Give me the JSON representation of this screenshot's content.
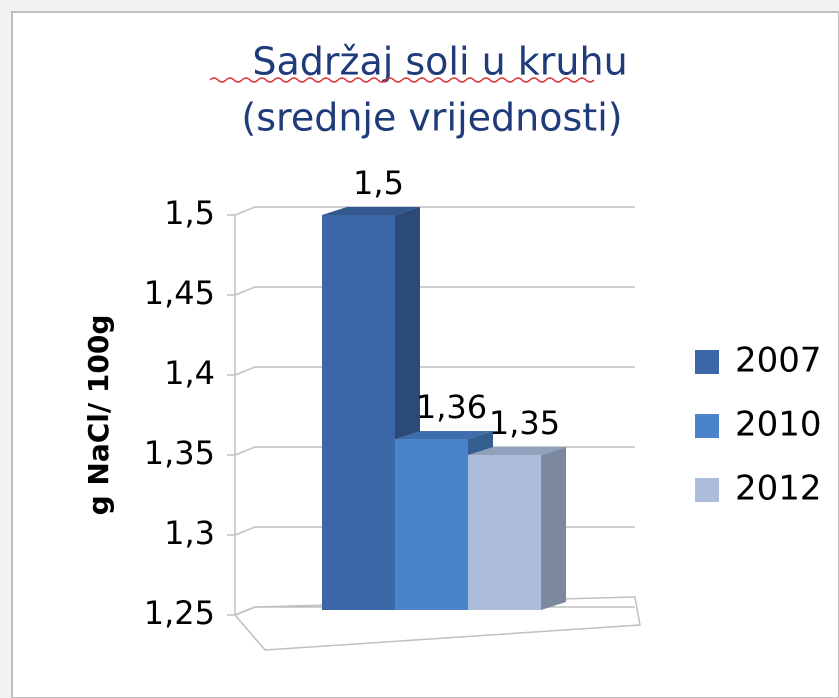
{
  "chart_data": {
    "type": "bar3d",
    "title": "Sadržaj soli u kruhu",
    "subtitle": "(srednje vrijednosti)",
    "y_label": "g NaCl/ 100g",
    "categories": [
      null
    ],
    "series": [
      {
        "name": "2007",
        "color": "#3c67a6",
        "values": [
          1.5
        ],
        "value_labels": [
          "1,5"
        ]
      },
      {
        "name": "2010",
        "color": "#4a83c9",
        "values": [
          1.36
        ],
        "value_labels": [
          "1,36"
        ]
      },
      {
        "name": "2012",
        "color": "#acbddc",
        "values": [
          1.35
        ],
        "value_labels": [
          "1,35"
        ]
      }
    ],
    "ylim": [
      1.25,
      1.5
    ],
    "yticks": [
      {
        "value": 1.25,
        "label": "1,25"
      },
      {
        "value": 1.3,
        "label": "1,3"
      },
      {
        "value": 1.35,
        "label": "1,35"
      },
      {
        "value": 1.4,
        "label": "1,4"
      },
      {
        "value": 1.45,
        "label": "1,45"
      },
      {
        "value": 1.5,
        "label": "1,5"
      }
    ],
    "grid": true,
    "legend": "right"
  }
}
